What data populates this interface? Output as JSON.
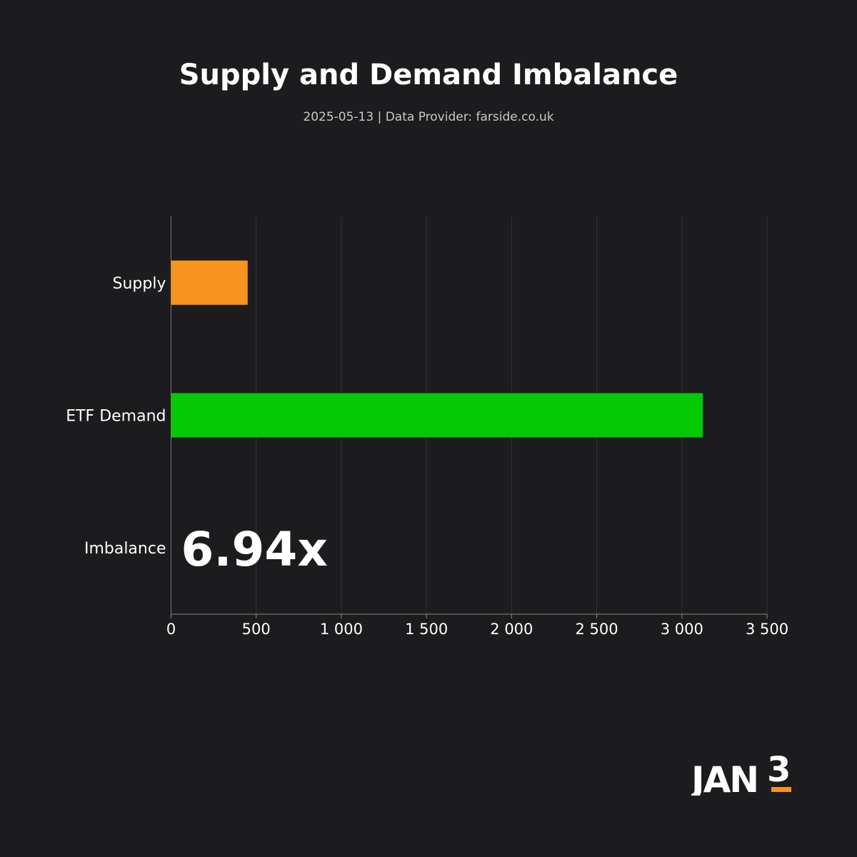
{
  "chart_data": {
    "type": "bar",
    "orientation": "horizontal",
    "title": "Supply and Demand Imbalance",
    "subtitle": "2025-05-13  |  Data Provider: farside.co.uk",
    "categories": [
      "Supply",
      "ETF Demand",
      "Imbalance"
    ],
    "values": [
      450,
      3123,
      null
    ],
    "bar_colors": [
      "#f7931e",
      "#05c905"
    ],
    "annotation": "6.94x",
    "xlim": [
      0,
      3500
    ],
    "xticks": [
      0,
      500,
      1000,
      1500,
      2000,
      2500,
      3000,
      3500
    ],
    "xtick_labels": [
      "0",
      "500",
      "1 000",
      "1 500",
      "2 000",
      "2 500",
      "3 000",
      "3 500"
    ],
    "xlabel": "",
    "ylabel": "",
    "grid": true
  },
  "logo": {
    "text": "JAN3",
    "accent": "#f7931e"
  }
}
